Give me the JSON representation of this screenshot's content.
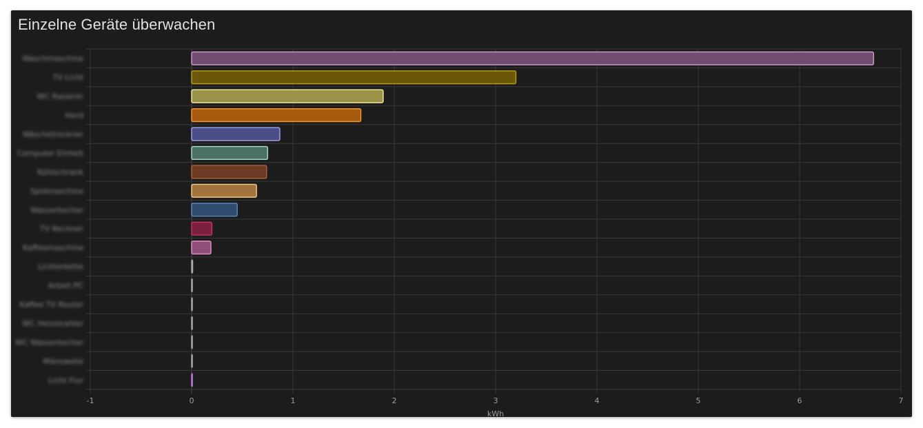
{
  "card": {
    "title": "Einzelne Geräte überwachen"
  },
  "chart_data": {
    "type": "bar",
    "orientation": "horizontal",
    "title": "Einzelne Geräte überwachen",
    "xlabel": "kWh",
    "ylabel": "",
    "xlim": [
      -1,
      7
    ],
    "xticks": [
      -1,
      0,
      1,
      2,
      3,
      4,
      5,
      6,
      7
    ],
    "grid": true,
    "legend": "none",
    "categories": [
      "Waschmaschine",
      "TV Licht",
      "WC Rasierer",
      "Herd",
      "Wäschetrockner",
      "Computer Einheit",
      "Kühlschrank",
      "Spülmaschine",
      "Wasserkocher",
      "TV Rechner",
      "Kaffeemaschine",
      "Lichterkette",
      "Arbeit PC",
      "Kaffee TV Router",
      "WC Heizstrahler",
      "WC Wasserkocher",
      "Mikrowelle",
      "Licht Flur"
    ],
    "values": [
      6.73,
      3.2,
      1.89,
      1.67,
      0.87,
      0.75,
      0.74,
      0.64,
      0.45,
      0.2,
      0.19,
      0.01,
      0,
      0,
      0,
      0,
      0,
      0.005
    ],
    "colors": [
      "#6f4c70",
      "#6a5708",
      "#9a9249",
      "#a65a0f",
      "#4b4d86",
      "#4c7062",
      "#6b3c23",
      "#a0723c",
      "#2f4a6c",
      "#7b1f3d",
      "#8e4e79",
      "#5e5e5e",
      "#5e5e5e",
      "#5e5e5e",
      "#5e5e5e",
      "#5e5e5e",
      "#5e5e5e",
      "#8e4e99"
    ],
    "borders": [
      "#c89ac8",
      "#b49a14",
      "#f2e894",
      "#f29526",
      "#9d9ee4",
      "#9ed6c2",
      "#a5623c",
      "#f6c57e",
      "#5d87bb",
      "#c43360",
      "#e08ec1",
      "#aaaaaa",
      "#aaaaaa",
      "#aaaaaa",
      "#aaaaaa",
      "#aaaaaa",
      "#aaaaaa",
      "#c77ce0"
    ]
  }
}
